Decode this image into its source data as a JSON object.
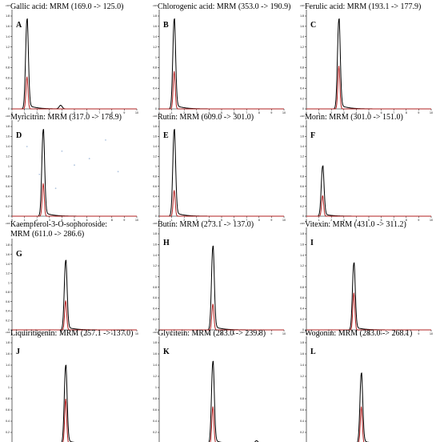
{
  "chart_data": [
    {
      "type": "line",
      "letter": "A",
      "title": [
        "Gallic acid: MRM (169.0 -> 125.0)"
      ],
      "scale_note": "x10²",
      "peak_rt": 1.2,
      "black_height": 1.0,
      "red_height": 0.36,
      "minor_peak": {
        "rt": 3.9,
        "height": 0.04
      },
      "noise": false
    },
    {
      "type": "line",
      "letter": "B",
      "title": [
        "Chlorogenic acid: MRM (353.0 -> 190.9)"
      ],
      "scale_note": "x10²",
      "peak_rt": 1.2,
      "black_height": 1.0,
      "red_height": 0.42,
      "minor_peak": null,
      "noise": false
    },
    {
      "type": "line",
      "letter": "C",
      "title": [
        "Ferulic acid: MRM (193.1 -> 177.9)"
      ],
      "scale_note": "x10²",
      "peak_rt": 2.6,
      "black_height": 1.0,
      "red_height": 0.48,
      "minor_peak": null,
      "noise": false
    },
    {
      "type": "line",
      "letter": "D",
      "title": [
        "Myricitrin: MRM (317.0 -> 178.9)"
      ],
      "scale_note": "x10²",
      "peak_rt": 2.5,
      "black_height": 1.0,
      "red_height": 0.38,
      "minor_peak": null,
      "noise": true
    },
    {
      "type": "line",
      "letter": "E",
      "title": [
        "Rutin: MRM (609.0 -> 301.0)"
      ],
      "scale_note": "x10²",
      "peak_rt": 1.2,
      "black_height": 1.0,
      "red_height": 0.3,
      "minor_peak": null,
      "noise": false
    },
    {
      "type": "line",
      "letter": "F",
      "title": [
        "Morin: MRM (301.0 -> 151.0)"
      ],
      "scale_note": "x10²",
      "peak_rt": 1.3,
      "black_height": 0.58,
      "red_height": 0.24,
      "minor_peak": null,
      "noise": false
    },
    {
      "type": "line",
      "letter": "G",
      "title": [
        "Kaempferol-3-O-sophoroside:",
        "MRM (611.0 -> 286.6)"
      ],
      "scale_note": "x10²",
      "peak_rt": 4.3,
      "black_height": 0.85,
      "red_height": 0.36,
      "minor_peak": null,
      "noise": false
    },
    {
      "type": "line",
      "letter": "H",
      "title": [
        "Butin: MRM (273.1 -> 137.0)"
      ],
      "scale_note": "x10²",
      "peak_rt": 4.3,
      "black_height": 0.9,
      "red_height": 0.28,
      "minor_peak": null,
      "noise": false
    },
    {
      "type": "line",
      "letter": "I",
      "title": [
        "Vitexin: MRM (431.0 -> 311.2)"
      ],
      "scale_note": "x10²",
      "peak_rt": 3.8,
      "black_height": 0.72,
      "red_height": 0.4,
      "minor_peak": null,
      "noise": false
    },
    {
      "type": "line",
      "letter": "J",
      "title": [
        "Liquiritigenin: MRM (257.1 -> 137.0)"
      ],
      "scale_note": "x10²",
      "peak_rt": 4.3,
      "black_height": 0.8,
      "red_height": 0.46,
      "minor_peak": null,
      "noise": false
    },
    {
      "type": "line",
      "letter": "K",
      "title": [
        "Glycitein: MRM (283.0 -> 239.8)"
      ],
      "scale_note": "x10²",
      "peak_rt": 4.3,
      "black_height": 0.84,
      "red_height": 0.38,
      "minor_peak": {
        "rt": 7.8,
        "height": 0.03
      },
      "noise": false
    },
    {
      "type": "line",
      "letter": "L",
      "title": [
        "Wogonin: MRM (283.0 -> 268.1)"
      ],
      "scale_note": "x10²",
      "peak_rt": 4.4,
      "black_height": 0.72,
      "red_height": 0.38,
      "minor_peak": null,
      "noise": false
    }
  ],
  "common": {
    "x_ticks": [
      "0",
      "1",
      "2",
      "3",
      "4",
      "5",
      "6",
      "7",
      "8",
      "9",
      "10"
    ],
    "y_ticks": [
      "0",
      "0.2",
      "0.4",
      "0.6",
      "0.8",
      "1",
      "1.2",
      "1.4",
      "1.6",
      "1.8"
    ],
    "xlim": [
      0,
      10
    ],
    "colors": {
      "black_trace": "#000000",
      "red_trace": "#b22222",
      "background": "#ffffff"
    },
    "grid": false,
    "legend": "none"
  }
}
